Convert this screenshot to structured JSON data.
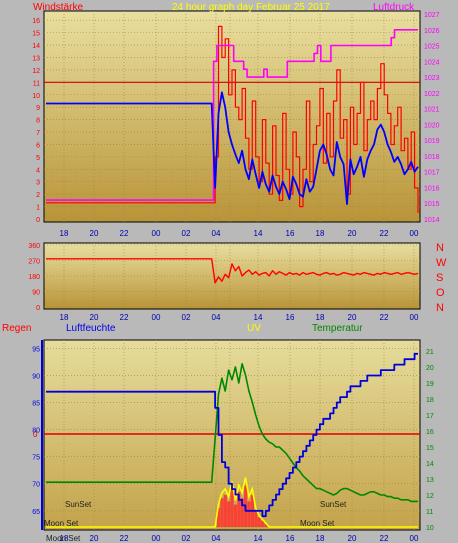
{
  "chart_data": [
    {
      "type": "line",
      "title": "24 hour graph day   Februar 25 2017",
      "left_label": "Windstärke",
      "right_label": "Luftdruck",
      "x_ticks": [
        "18",
        "20",
        "22",
        "00",
        "02",
        "04",
        "",
        "14",
        "16",
        "18",
        "20",
        "22",
        "00"
      ],
      "y_left_ticks": [
        0,
        1,
        2,
        3,
        4,
        5,
        6,
        7,
        8,
        9,
        10,
        11,
        12,
        13,
        14,
        15,
        16
      ],
      "y_right_ticks": [
        1014,
        1015,
        1016,
        1017,
        1018,
        1019,
        1020,
        1021,
        1022,
        1023,
        1024,
        1025,
        1026,
        1027
      ],
      "ylim_left": [
        0,
        16.5
      ],
      "ylim_right": [
        1014,
        1027
      ],
      "colors": {
        "wind_gust": "#ff0000",
        "wind_avg": "#0000ff",
        "pressure": "#ff00ff",
        "avg_ref": "#d00000"
      },
      "series": [
        {
          "key": "avg_ref",
          "values_start": 11.0,
          "values_end": 11.0
        },
        {
          "key": "wind_avg",
          "values": [
            9.3,
            9.3,
            9.3,
            9.3,
            9.3,
            9.3,
            9.3,
            9.3,
            9.3,
            9.3,
            9.3,
            9.3,
            9.3,
            9.3,
            9.3,
            9.3,
            9.3,
            9.3,
            9.3,
            9.3,
            9.3,
            9.3,
            9.3,
            9.3,
            9.3,
            9.3,
            9.3,
            9.3,
            9.3,
            9.3,
            9.3,
            9.3,
            9.3,
            9.3,
            9.3,
            9.3,
            9.3,
            9.3,
            9.3,
            9.3,
            9.3,
            9.3,
            9.3,
            9.3,
            9.3,
            9.3,
            9.3,
            9.3,
            9.3,
            9.3,
            2.5,
            8.5,
            10.2,
            9.0,
            7.0,
            6.0,
            5.2,
            4.5,
            5.5,
            4.0,
            3.2,
            4.8,
            3.6,
            2.5,
            3.8,
            2.8,
            2.2,
            3.5,
            2.6,
            2.0,
            3.0,
            2.4,
            1.6,
            3.4,
            2.8,
            2.0,
            1.8,
            3.2,
            2.2,
            2.6,
            4.0,
            5.5,
            6.0,
            5.2,
            4.0,
            3.5,
            6.2,
            5.0,
            4.4,
            1.2,
            4.8,
            3.6,
            4.2,
            5.0,
            3.4,
            4.8,
            5.5,
            6.0,
            7.2,
            7.6,
            7.0,
            6.0,
            5.4,
            4.6,
            5.0,
            4.4,
            3.6,
            4.0,
            4.6,
            3.8,
            4.2
          ]
        },
        {
          "key": "pressure",
          "values": [
            1015.2,
            1015.2,
            1015.2,
            1015.2,
            1015.2,
            1015.2,
            1015.2,
            1015.2,
            1015.2,
            1015.2,
            1015.2,
            1015.2,
            1015.2,
            1015.2,
            1015.2,
            1015.2,
            1015.2,
            1015.2,
            1015.2,
            1015.2,
            1015.2,
            1015.2,
            1015.2,
            1015.2,
            1015.2,
            1015.2,
            1015.2,
            1015.2,
            1015.2,
            1015.2,
            1015.2,
            1015.2,
            1015.2,
            1015.2,
            1015.2,
            1015.2,
            1015.2,
            1015.2,
            1015.2,
            1015.2,
            1015.2,
            1015.2,
            1015.2,
            1015.2,
            1015.2,
            1015.2,
            1015.2,
            1015.2,
            1015.2,
            1015.2,
            1024.0,
            1025.0,
            1025.0,
            1025.0,
            1025.0,
            1025.0,
            1024.0,
            1024.0,
            1024.0,
            1023.5,
            1023.0,
            1023.0,
            1023.0,
            1023.0,
            1023.0,
            1023.5,
            1023.0,
            1023.0,
            1023.0,
            1023.0,
            1023.0,
            1023.0,
            1024.0,
            1024.0,
            1024.0,
            1024.0,
            1024.0,
            1024.0,
            1024.0,
            1024.0,
            1024.5,
            1025.0,
            1024.0,
            1024.0,
            1024.0,
            1025.0,
            1025.0,
            1025.0,
            1025.0,
            1025.0,
            1025.0,
            1025.0,
            1025.0,
            1025.0,
            1025.0,
            1025.0,
            1025.0,
            1025.0,
            1025.0,
            1025.0,
            1025.0,
            1025.0,
            1025.0,
            1025.5,
            1026.0,
            1026.0,
            1026.0,
            1026.0,
            1026.0,
            1026.0,
            1026.0,
            1026.0
          ]
        },
        {
          "key": "wind_gust",
          "values": [
            1.3,
            1.3,
            1.3,
            1.3,
            1.3,
            1.3,
            1.3,
            1.3,
            1.3,
            1.3,
            1.3,
            1.3,
            1.3,
            1.3,
            1.3,
            1.3,
            1.3,
            1.3,
            1.3,
            1.3,
            1.3,
            1.3,
            1.3,
            1.3,
            1.3,
            1.3,
            1.3,
            1.3,
            1.3,
            1.3,
            1.3,
            1.3,
            1.3,
            1.3,
            1.3,
            1.3,
            1.3,
            1.3,
            1.3,
            1.3,
            1.3,
            1.3,
            1.3,
            1.3,
            1.3,
            1.3,
            1.3,
            1.3,
            1.3,
            1.3,
            5.0,
            15.5,
            13.0,
            14.5,
            10.0,
            12.0,
            9.0,
            8.0,
            10.5,
            6.5,
            4.0,
            9.5,
            5.0,
            3.0,
            8.0,
            4.5,
            2.0,
            7.5,
            3.5,
            1.5,
            8.5,
            4.0,
            2.0,
            7.0,
            5.0,
            1.0,
            4.0,
            9.5,
            3.0,
            6.0,
            7.5,
            10.5,
            4.5,
            8.5,
            5.0,
            9.5,
            12.0,
            6.5,
            8.0,
            2.0,
            9.0,
            6.0,
            8.5,
            11.0,
            5.5,
            8.0,
            9.5,
            8.0,
            10.5,
            12.5,
            10.0,
            8.5,
            6.0,
            7.5,
            9.0,
            5.5,
            6.5,
            4.0,
            7.0,
            2.5,
            0.5
          ]
        }
      ]
    },
    {
      "type": "line",
      "title": "",
      "y_ticks": [
        0,
        90,
        180,
        270,
        360
      ],
      "ylim": [
        0,
        360
      ],
      "compass": [
        "N",
        "W",
        "S",
        "O",
        "N"
      ],
      "x_ticks": [
        "18",
        "20",
        "22",
        "00",
        "02",
        "04",
        "",
        "14",
        "16",
        "18",
        "20",
        "22",
        "00"
      ],
      "colors": {
        "dir": "#ff0000"
      },
      "series": [
        {
          "key": "wind_dir",
          "values": [
            280,
            280,
            280,
            280,
            280,
            280,
            280,
            280,
            280,
            280,
            280,
            280,
            280,
            280,
            280,
            280,
            280,
            280,
            280,
            280,
            280,
            280,
            280,
            280,
            280,
            280,
            280,
            280,
            280,
            280,
            280,
            280,
            280,
            280,
            280,
            280,
            280,
            280,
            280,
            280,
            280,
            280,
            280,
            280,
            280,
            280,
            280,
            280,
            280,
            280,
            140,
            175,
            150,
            190,
            170,
            250,
            210,
            235,
            180,
            200,
            215,
            190,
            205,
            185,
            195,
            200,
            180,
            210,
            190,
            205,
            195,
            185,
            200,
            190,
            195,
            185,
            200,
            190,
            195,
            200,
            190,
            185,
            195,
            200,
            190,
            195,
            185,
            190,
            200,
            195,
            190,
            185,
            195,
            190,
            200,
            195,
            190,
            185,
            195,
            190,
            200,
            195,
            190,
            195,
            200,
            190,
            195,
            200,
            195,
            190,
            195
          ]
        }
      ]
    },
    {
      "type": "line",
      "title": "",
      "labels": {
        "rain": "Regen",
        "humidity": "Luftfeuchte",
        "uv": "UV",
        "temp": "Temperatur",
        "rain_zero": "0"
      },
      "y_left_ticks": [
        65,
        70,
        75,
        80,
        85,
        90,
        95
      ],
      "ylim_left": [
        62,
        96
      ],
      "y_right_ticks": [
        10,
        11,
        12,
        13,
        14,
        15,
        16,
        17,
        18,
        19,
        20,
        21
      ],
      "ylim_right": [
        10,
        21.5
      ],
      "x_ticks": [
        "18",
        "20",
        "22",
        "00",
        "02",
        "04",
        "",
        "14",
        "16",
        "18",
        "20",
        "22",
        "00"
      ],
      "annotations": [
        "SunSet",
        "Moon Set",
        "SunSet",
        "Moon Set",
        "Moon Set"
      ],
      "colors": {
        "humidity": "#0000dd",
        "temp": "#008800",
        "uv": "#ffff00",
        "solar": "#ff3030",
        "rain": "#dd0000"
      },
      "series": [
        {
          "key": "humidity",
          "values": [
            87,
            87,
            87,
            87,
            87,
            87,
            87,
            87,
            87,
            87,
            87,
            87,
            87,
            87,
            87,
            87,
            87,
            87,
            87,
            87,
            87,
            87,
            87,
            87,
            87,
            87,
            87,
            87,
            87,
            87,
            87,
            87,
            87,
            87,
            87,
            87,
            87,
            87,
            87,
            87,
            87,
            87,
            87,
            87,
            87,
            87,
            87,
            87,
            87,
            87,
            84,
            79,
            74,
            73,
            70,
            69,
            68,
            67,
            66,
            65,
            65,
            65,
            65,
            65,
            64,
            65,
            66,
            67,
            68,
            69,
            70,
            71,
            72,
            73,
            74,
            75,
            76,
            77,
            78,
            79,
            80,
            81,
            82,
            82,
            83,
            84,
            85,
            86,
            86,
            87,
            88,
            88,
            88,
            89,
            89,
            90,
            90,
            90,
            90,
            91,
            91,
            91,
            91,
            92,
            92,
            92,
            93,
            93,
            93,
            94,
            94
          ]
        },
        {
          "key": "temp",
          "values": [
            12.8,
            12.8,
            12.8,
            12.8,
            12.8,
            12.8,
            12.8,
            12.8,
            12.8,
            12.8,
            12.8,
            12.8,
            12.8,
            12.8,
            12.8,
            12.8,
            12.8,
            12.8,
            12.8,
            12.8,
            12.8,
            12.8,
            12.8,
            12.8,
            12.8,
            12.8,
            12.8,
            12.8,
            12.8,
            12.8,
            12.8,
            12.8,
            12.8,
            12.8,
            12.8,
            12.8,
            12.8,
            12.8,
            12.8,
            12.8,
            12.8,
            12.8,
            12.8,
            12.8,
            12.8,
            12.8,
            12.8,
            12.8,
            12.8,
            12.8,
            15.5,
            18.3,
            19.3,
            18.5,
            19.8,
            19.2,
            20.0,
            19.0,
            20.2,
            19.5,
            18.5,
            17.8,
            17.0,
            16.3,
            15.8,
            15.5,
            15.3,
            15.2,
            15.0,
            15.0,
            14.8,
            14.6,
            14.3,
            14.0,
            13.7,
            13.5,
            13.2,
            13.0,
            12.8,
            12.6,
            12.4,
            12.4,
            12.3,
            12.2,
            12.1,
            12.0,
            12.1,
            12.3,
            12.4,
            12.4,
            12.3,
            12.2,
            12.1,
            12.0,
            12.0,
            12.1,
            12.2,
            12.2,
            12.1,
            12.0,
            12.0,
            11.9,
            11.9,
            11.8,
            11.8,
            11.7,
            11.7,
            11.7,
            11.6,
            11.6,
            11.6
          ]
        },
        {
          "key": "uv",
          "values": [
            0,
            0,
            0,
            0,
            0,
            0,
            0,
            0,
            0,
            0,
            0,
            0,
            0,
            0,
            0,
            0,
            0,
            0,
            0,
            0,
            0,
            0,
            0,
            0,
            0,
            0,
            0,
            0,
            0,
            0,
            0,
            0,
            0,
            0,
            0,
            0,
            0,
            0,
            0,
            0,
            0,
            0,
            0,
            0,
            0,
            0,
            0,
            0,
            0,
            0,
            0,
            0.6,
            0.9,
            1.0,
            0.8,
            1.2,
            0.7,
            1.1,
            0.9,
            1.3,
            0.8,
            1.0,
            0.5,
            0.3,
            0.2,
            0.1,
            0,
            0,
            0,
            0,
            0,
            0,
            0,
            0,
            0,
            0,
            0,
            0,
            0,
            0,
            0,
            0,
            0,
            0,
            0,
            0,
            0,
            0,
            0,
            0,
            0,
            0,
            0,
            0,
            0,
            0,
            0,
            0,
            0,
            0,
            0,
            0,
            0,
            0,
            0,
            0,
            0,
            0,
            0,
            0,
            0
          ]
        },
        {
          "key": "rain_zero",
          "values_start": 0,
          "values_end": 0
        }
      ]
    }
  ]
}
